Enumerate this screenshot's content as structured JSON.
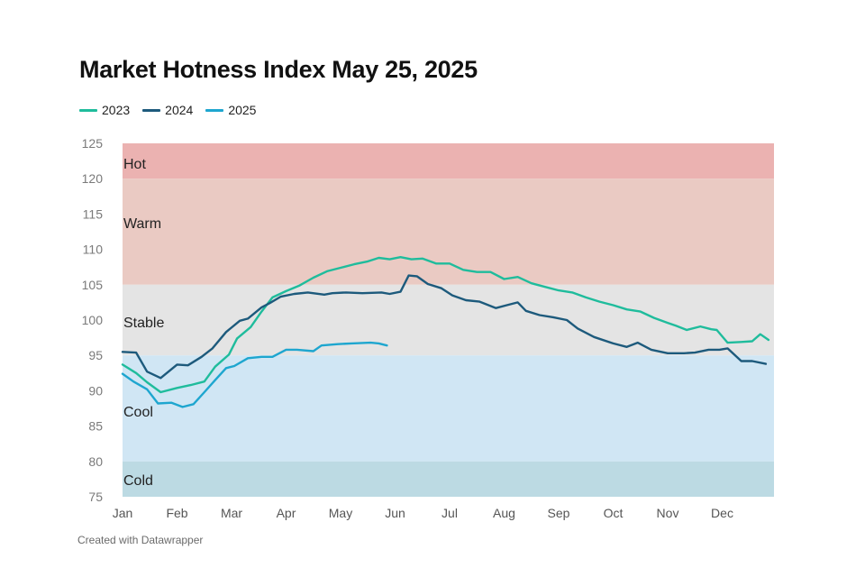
{
  "title": "Market Hotness Index May 25, 2025",
  "footer": "Created with Datawrapper",
  "chart_data": {
    "type": "line",
    "title": "Market Hotness Index May 25, 2025",
    "xlabel": "",
    "ylabel": "",
    "ylim": [
      75,
      125
    ],
    "y_ticks": [
      75,
      80,
      85,
      90,
      95,
      100,
      105,
      110,
      115,
      120,
      125
    ],
    "x_ticks": [
      "Jan",
      "Feb",
      "Mar",
      "Apr",
      "May",
      "Jun",
      "Jul",
      "Aug",
      "Sep",
      "Oct",
      "Nov",
      "Dec"
    ],
    "x_domain_months": [
      0,
      11.8
    ],
    "grid": false,
    "legend_position": "top-left",
    "bands": [
      {
        "label": "Hot",
        "from": 120,
        "to": 125,
        "color": "#ebb2b1"
      },
      {
        "label": "Warm",
        "from": 105,
        "to": 120,
        "color": "#eacac3"
      },
      {
        "label": "Stable",
        "from": 95,
        "to": 105,
        "color": "#e4e4e4"
      },
      {
        "label": "Cool",
        "from": 80,
        "to": 95,
        "color": "#d0e6f4"
      },
      {
        "label": "Cold",
        "from": 75,
        "to": 80,
        "color": "#bcdae3"
      }
    ],
    "series": [
      {
        "name": "2023",
        "color": "#1fbc9c",
        "x": [
          0,
          0.25,
          0.45,
          0.7,
          1.0,
          1.25,
          1.5,
          1.7,
          1.95,
          2.1,
          2.35,
          2.55,
          2.75,
          3.0,
          3.25,
          3.5,
          3.75,
          4.0,
          4.25,
          4.5,
          4.7,
          4.9,
          5.1,
          5.3,
          5.5,
          5.75,
          6.0,
          6.25,
          6.5,
          6.75,
          7.0,
          7.25,
          7.5,
          7.75,
          8.0,
          8.25,
          8.5,
          8.75,
          9.0,
          9.25,
          9.5,
          9.75,
          10.0,
          10.15,
          10.35,
          10.6,
          10.8,
          10.9,
          11.1,
          11.35,
          11.55,
          11.7,
          11.85
        ],
        "values": [
          93.7,
          92.5,
          91.2,
          89.8,
          90.4,
          90.8,
          91.3,
          93.4,
          95.1,
          97.4,
          99.0,
          101.2,
          103.2,
          104.1,
          104.9,
          106.0,
          106.9,
          107.4,
          107.9,
          108.3,
          108.8,
          108.6,
          108.9,
          108.6,
          108.7,
          108.0,
          108.0,
          107.1,
          106.8,
          106.8,
          105.8,
          106.1,
          105.2,
          104.7,
          104.2,
          103.9,
          103.2,
          102.6,
          102.1,
          101.5,
          101.2,
          100.3,
          99.6,
          99.2,
          98.6,
          99.1,
          98.7,
          98.6,
          96.8,
          96.9,
          97.0,
          98.0,
          97.2
        ]
      },
      {
        "name": "2024",
        "color": "#1d5a7c",
        "x": [
          0,
          0.25,
          0.45,
          0.7,
          1.0,
          1.2,
          1.45,
          1.65,
          1.9,
          2.15,
          2.3,
          2.55,
          2.7,
          2.9,
          3.15,
          3.4,
          3.7,
          3.85,
          4.1,
          4.4,
          4.75,
          4.9,
          5.1,
          5.25,
          5.4,
          5.6,
          5.85,
          6.05,
          6.3,
          6.55,
          6.85,
          7.05,
          7.25,
          7.4,
          7.65,
          7.9,
          8.15,
          8.35,
          8.65,
          9.0,
          9.25,
          9.45,
          9.7,
          10.0,
          10.3,
          10.5,
          10.75,
          10.95,
          11.1,
          11.35,
          11.55,
          11.8
        ],
        "values": [
          95.5,
          95.4,
          92.7,
          91.8,
          93.7,
          93.6,
          94.8,
          96.0,
          98.3,
          99.9,
          100.2,
          101.8,
          102.4,
          103.3,
          103.7,
          103.9,
          103.6,
          103.8,
          103.9,
          103.8,
          103.9,
          103.7,
          104.0,
          106.3,
          106.2,
          105.1,
          104.5,
          103.5,
          102.8,
          102.6,
          101.7,
          102.1,
          102.5,
          101.3,
          100.7,
          100.4,
          100.0,
          98.8,
          97.6,
          96.7,
          96.2,
          96.8,
          95.8,
          95.3,
          95.3,
          95.4,
          95.8,
          95.8,
          96.0,
          94.2,
          94.2,
          93.8
        ]
      },
      {
        "name": "2025",
        "color": "#1ea6cf",
        "x": [
          0,
          0.2,
          0.45,
          0.65,
          0.9,
          1.1,
          1.3,
          1.5,
          1.7,
          1.9,
          2.05,
          2.3,
          2.55,
          2.75,
          3.0,
          3.2,
          3.5,
          3.65,
          3.95,
          4.2,
          4.55,
          4.7,
          4.85
        ],
        "values": [
          92.4,
          91.3,
          90.2,
          88.2,
          88.3,
          87.7,
          88.1,
          89.8,
          91.5,
          93.2,
          93.5,
          94.6,
          94.8,
          94.8,
          95.8,
          95.8,
          95.6,
          96.4,
          96.6,
          96.7,
          96.8,
          96.7,
          96.4
        ]
      }
    ]
  }
}
